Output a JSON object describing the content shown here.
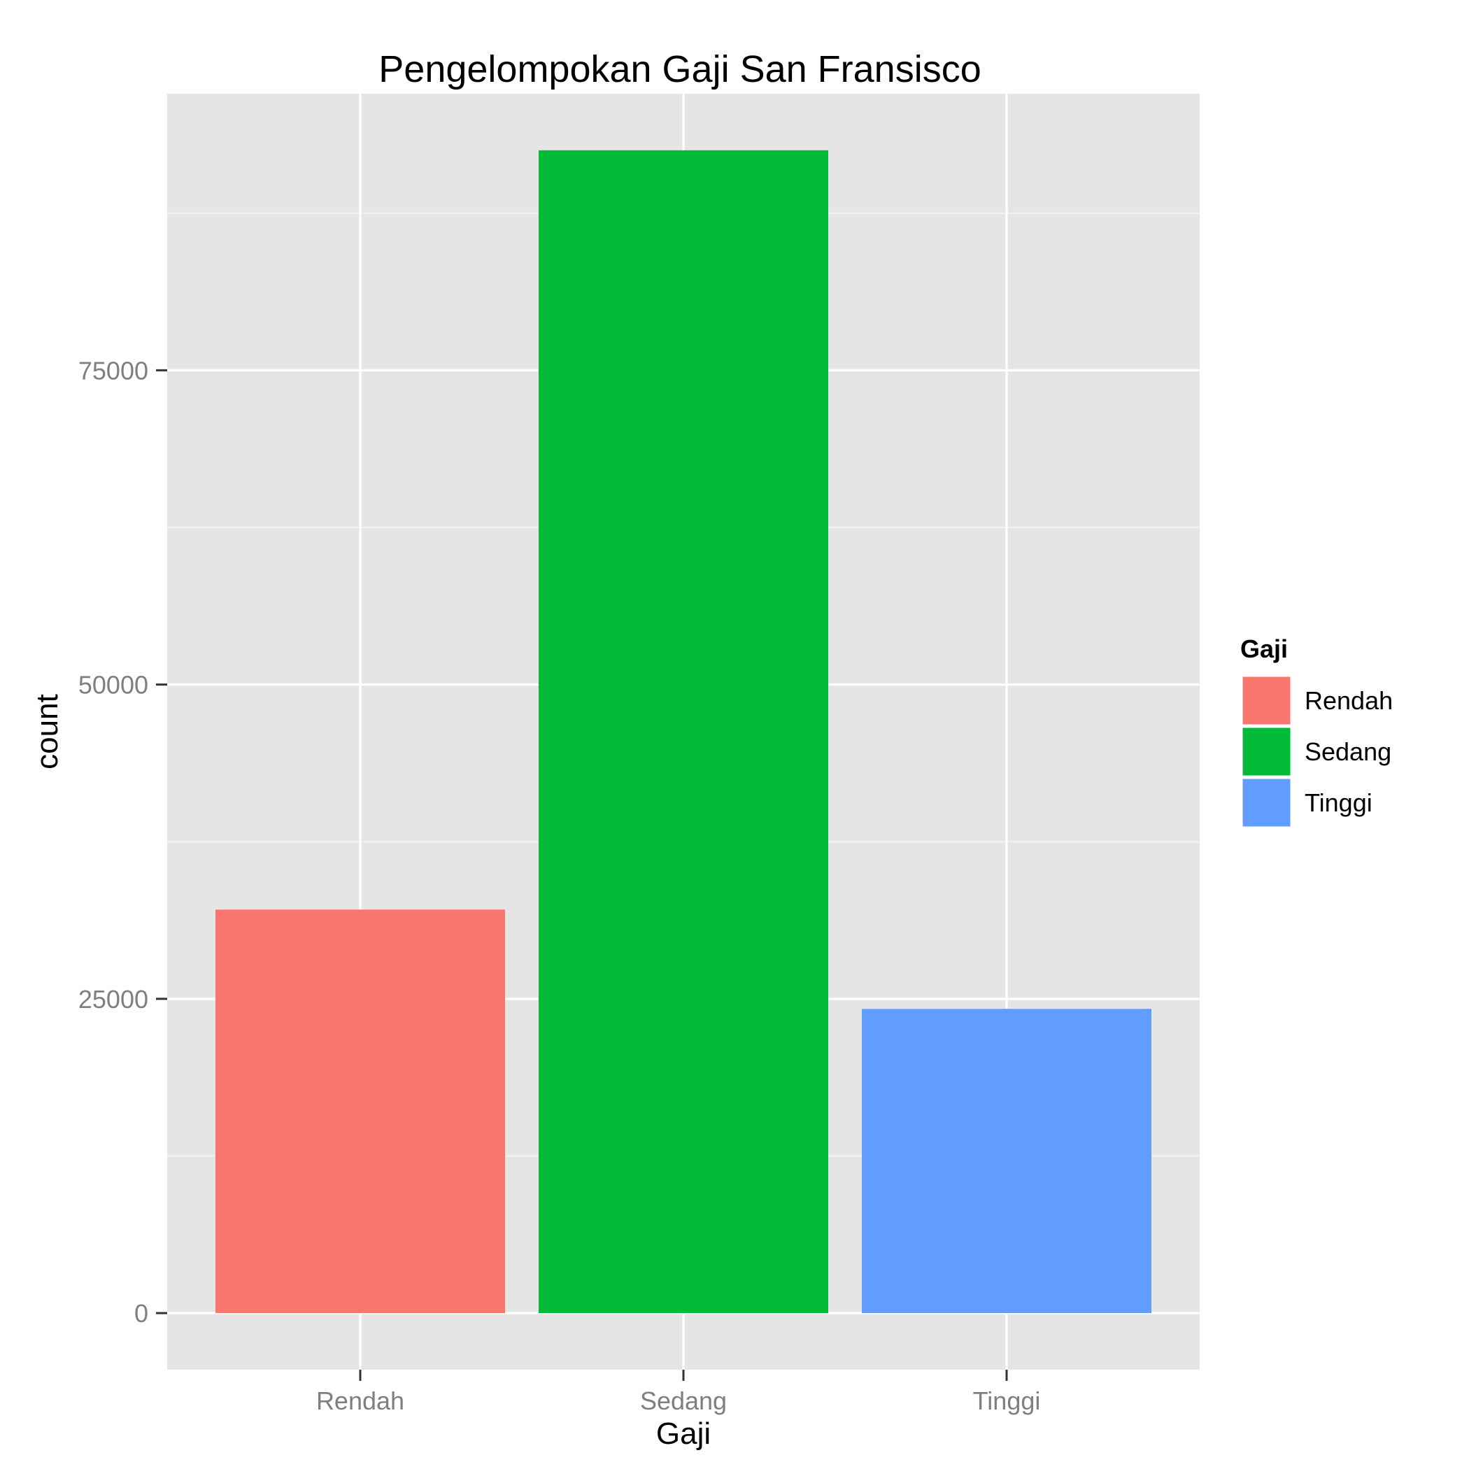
{
  "chart_data": {
    "type": "bar",
    "title": "Pengelompokan Gaji San Fransisco",
    "xlabel": "Gaji",
    "ylabel": "count",
    "categories": [
      "Rendah",
      "Sedang",
      "Tinggi"
    ],
    "values": [
      32100,
      92500,
      24200
    ],
    "colors": [
      "#F8766D",
      "#00BA38",
      "#619CFF"
    ],
    "ylim": [
      -4500,
      97000
    ],
    "y_ticks": [
      0,
      25000,
      50000,
      75000
    ],
    "y_tick_labels": [
      "0",
      "25000",
      "50000",
      "75000"
    ],
    "grid": true,
    "legend": {
      "title": "Gaji",
      "position": "right",
      "entries": [
        "Rendah",
        "Sedang",
        "Tinggi"
      ]
    }
  }
}
